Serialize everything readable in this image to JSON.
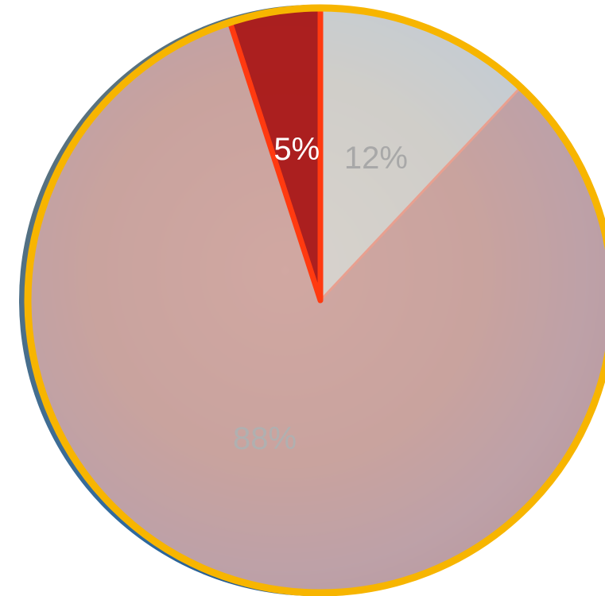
{
  "chart_data": {
    "type": "pie",
    "values": [
      5,
      12,
      88
    ],
    "value_labels": [
      "5%",
      "12%",
      "88%"
    ],
    "colors": [
      "#a81414",
      "#d9d9d9",
      "#d2a9a9"
    ],
    "label_colors": [
      "#ffffff",
      "#a8a8a8",
      "#b0b0b0"
    ]
  }
}
